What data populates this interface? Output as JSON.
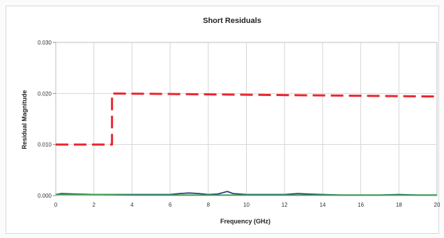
{
  "chart_data": {
    "type": "line",
    "title": "Short Residuals",
    "xlabel": "Frequency (GHz)",
    "ylabel": "Residual Magnitude",
    "xlim": [
      0,
      20
    ],
    "ylim": [
      0,
      0.03
    ],
    "x_ticks": [
      0,
      2,
      4,
      6,
      8,
      10,
      12,
      14,
      16,
      18,
      20
    ],
    "x_tick_labels": [
      "0",
      "2",
      "4",
      "6",
      "8",
      "10",
      "12",
      "14",
      "16",
      "18",
      "20"
    ],
    "y_ticks": [
      0,
      0.01,
      0.02,
      0.03
    ],
    "y_tick_labels": [
      "0.000",
      "0.010",
      "0.020",
      "0.030"
    ],
    "grid": true,
    "series": [
      {
        "color": "#e8262e",
        "style": "dashed",
        "x": [
          0,
          2.95,
          2.95,
          20
        ],
        "y": [
          0.01,
          0.01,
          0.02,
          0.0194
        ]
      },
      {
        "color": "#2b3f8c",
        "style": "solid",
        "x": [
          0,
          0.3,
          1,
          2,
          3,
          4,
          5,
          6,
          6.5,
          7,
          7.5,
          8,
          8.5,
          8.8,
          9,
          9.3,
          10,
          11,
          12,
          12.7,
          13.2,
          14,
          15,
          16,
          17,
          18,
          19,
          20
        ],
        "y": [
          0.0002,
          0.0004,
          0.0003,
          0.0002,
          0.0002,
          0.0002,
          0.0002,
          0.0002,
          0.0004,
          0.0005,
          0.0004,
          0.0002,
          0.0003,
          0.0006,
          0.0008,
          0.0004,
          0.0002,
          0.0002,
          0.0002,
          0.0004,
          0.0003,
          0.0002,
          0.0001,
          0.0001,
          0.0001,
          0.0002,
          0.0001,
          0.0001
        ]
      },
      {
        "color": "#3aa04a",
        "style": "solid",
        "x": [
          0,
          2,
          4,
          6,
          8,
          10,
          12,
          14,
          16,
          18,
          20
        ],
        "y": [
          0.0002,
          0.0002,
          0.0001,
          0.0001,
          0.0001,
          0.0001,
          0.0001,
          0.0001,
          0.0001,
          0.0001,
          0.0001
        ]
      }
    ]
  }
}
